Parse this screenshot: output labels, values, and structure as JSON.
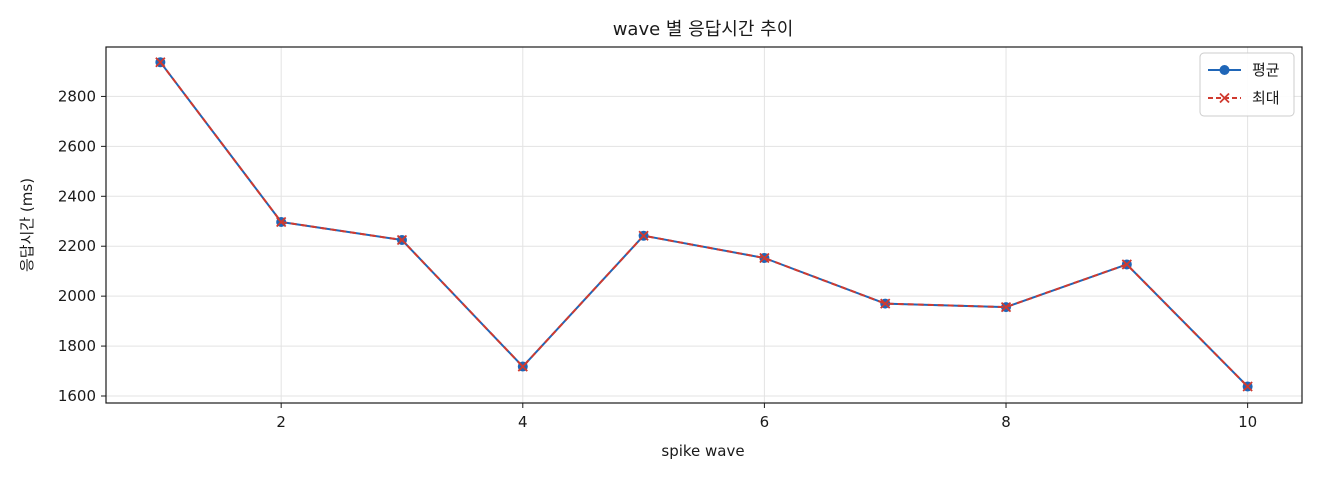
{
  "chart_data": {
    "type": "line",
    "title": "wave 별 응답시간 추이",
    "xlabel": "spike wave",
    "ylabel": "응답시간 (ms)",
    "x": [
      1,
      2,
      3,
      4,
      5,
      6,
      7,
      8,
      9,
      10
    ],
    "xlim": [
      0.55,
      10.45
    ],
    "ylim": [
      1572,
      2998
    ],
    "x_ticks": [
      2,
      4,
      6,
      8,
      10
    ],
    "y_ticks": [
      1600,
      1800,
      2000,
      2200,
      2400,
      2600,
      2800
    ],
    "grid": true,
    "legend_position": "top-right",
    "series": [
      {
        "name": "평균",
        "values": [
          2937,
          2297,
          2225,
          1718,
          2242,
          2153,
          1970,
          1956,
          2127,
          1638
        ],
        "color": "#1f66b8",
        "line_style": "solid",
        "marker": "circle"
      },
      {
        "name": "최대",
        "values": [
          2937,
          2297,
          2225,
          1718,
          2242,
          2153,
          1970,
          1956,
          2127,
          1638
        ],
        "color": "#d03a2f",
        "line_style": "dashed",
        "marker": "x"
      }
    ]
  }
}
